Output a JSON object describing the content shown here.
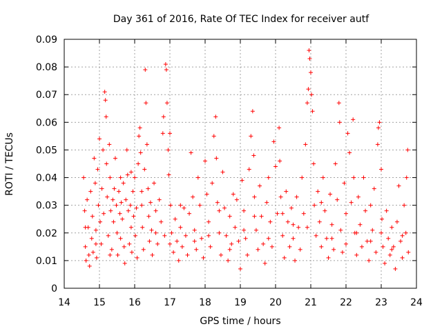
{
  "chart_data": {
    "type": "scatter",
    "title": "Day 361 of 2016, Rate Of TEC Index for receiver autf",
    "xlabel": "GPS time / hours",
    "ylabel": "ROTI / TECUs",
    "xlim": [
      14,
      24
    ],
    "ylim": [
      0,
      0.09
    ],
    "xticks": [
      "14",
      "15",
      "16",
      "17",
      "18",
      "19",
      "20",
      "21",
      "22",
      "23",
      "24"
    ],
    "yticks": [
      "0",
      "0.01",
      "0.02",
      "0.03",
      "0.04",
      "0.05",
      "0.06",
      "0.07",
      "0.08",
      "0.09"
    ],
    "grid": true,
    "marker": "plus",
    "color": "#ff0000",
    "series": [
      {
        "points": [
          [
            14.55,
            0.04
          ],
          [
            14.58,
            0.028
          ],
          [
            14.6,
            0.015
          ],
          [
            14.62,
            0.01
          ],
          [
            14.65,
            0.032
          ],
          [
            14.68,
            0.022
          ],
          [
            14.7,
            0.012
          ],
          [
            14.72,
            0.008
          ],
          [
            14.75,
            0.035
          ],
          [
            14.78,
            0.018
          ],
          [
            14.8,
            0.026
          ],
          [
            14.82,
            0.013
          ],
          [
            14.85,
            0.047
          ],
          [
            14.88,
            0.038
          ],
          [
            14.9,
            0.021
          ],
          [
            14.92,
            0.011
          ],
          [
            14.95,
            0.043
          ],
          [
            14.97,
            0.03
          ],
          [
            15.0,
            0.054
          ],
          [
            15.02,
            0.024
          ],
          [
            15.05,
            0.016
          ],
          [
            15.07,
            0.036
          ],
          [
            15.1,
            0.05
          ],
          [
            15.12,
            0.027
          ],
          [
            15.15,
            0.071
          ],
          [
            15.17,
            0.068
          ],
          [
            15.19,
            0.062
          ],
          [
            15.2,
            0.045
          ],
          [
            15.22,
            0.033
          ],
          [
            15.25,
            0.019
          ],
          [
            15.28,
            0.052
          ],
          [
            15.3,
            0.04
          ],
          [
            15.32,
            0.028
          ],
          [
            15.35,
            0.014
          ],
          [
            15.38,
            0.032
          ],
          [
            15.4,
            0.024
          ],
          [
            15.42,
            0.036
          ],
          [
            15.45,
            0.047
          ],
          [
            15.48,
            0.03
          ],
          [
            15.5,
            0.02
          ],
          [
            15.52,
            0.012
          ],
          [
            15.55,
            0.035
          ],
          [
            15.58,
            0.027
          ],
          [
            15.6,
            0.018
          ],
          [
            15.62,
            0.031
          ],
          [
            15.65,
            0.025
          ],
          [
            15.68,
            0.038
          ],
          [
            15.7,
            0.015
          ],
          [
            15.72,
            0.009
          ],
          [
            15.75,
            0.032
          ],
          [
            15.78,
            0.05
          ],
          [
            15.8,
            0.041
          ],
          [
            15.82,
            0.028
          ],
          [
            15.85,
            0.016
          ],
          [
            15.88,
            0.03
          ],
          [
            15.9,
            0.022
          ],
          [
            15.92,
            0.013
          ],
          [
            15.95,
            0.035
          ],
          [
            15.97,
            0.026
          ],
          [
            16.0,
            0.04
          ],
          [
            16.02,
            0.019
          ],
          [
            16.05,
            0.029
          ],
          [
            16.07,
            0.011
          ],
          [
            16.1,
            0.045
          ],
          [
            16.12,
            0.055
          ],
          [
            16.15,
            0.058
          ],
          [
            16.17,
            0.049
          ],
          [
            16.2,
            0.035
          ],
          [
            16.22,
            0.022
          ],
          [
            16.25,
            0.014
          ],
          [
            16.28,
            0.043
          ],
          [
            16.3,
            0.079
          ],
          [
            16.32,
            0.067
          ],
          [
            16.35,
            0.052
          ],
          [
            16.38,
            0.036
          ],
          [
            16.4,
            0.026
          ],
          [
            16.42,
            0.017
          ],
          [
            16.45,
            0.031
          ],
          [
            16.48,
            0.021
          ],
          [
            16.5,
            0.012
          ],
          [
            16.55,
            0.038
          ],
          [
            16.6,
            0.028
          ],
          [
            16.65,
            0.016
          ],
          [
            16.7,
            0.032
          ],
          [
            16.75,
            0.024
          ],
          [
            16.8,
            0.056
          ],
          [
            16.82,
            0.062
          ],
          [
            16.85,
            0.019
          ],
          [
            16.88,
            0.081
          ],
          [
            16.9,
            0.079
          ],
          [
            16.92,
            0.067
          ],
          [
            16.95,
            0.05
          ],
          [
            16.97,
            0.041
          ],
          [
            17.0,
            0.056
          ],
          [
            17.02,
            0.03
          ],
          [
            17.05,
            0.02
          ],
          [
            17.1,
            0.013
          ],
          [
            17.15,
            0.025
          ],
          [
            17.2,
            0.017
          ],
          [
            17.25,
            0.01
          ],
          [
            17.3,
            0.022
          ],
          [
            17.35,
            0.015
          ],
          [
            17.4,
            0.029
          ],
          [
            17.45,
            0.019
          ],
          [
            17.5,
            0.012
          ],
          [
            17.55,
            0.027
          ],
          [
            17.6,
            0.049
          ],
          [
            17.65,
            0.033
          ],
          [
            17.7,
            0.021
          ],
          [
            17.75,
            0.014
          ],
          [
            17.8,
            0.04
          ],
          [
            17.85,
            0.03
          ],
          [
            17.9,
            0.018
          ],
          [
            17.95,
            0.011
          ],
          [
            18.0,
            0.046
          ],
          [
            18.05,
            0.034
          ],
          [
            18.1,
            0.024
          ],
          [
            18.15,
            0.015
          ],
          [
            18.2,
            0.038
          ],
          [
            18.25,
            0.055
          ],
          [
            18.3,
            0.062
          ],
          [
            18.32,
            0.047
          ],
          [
            18.35,
            0.031
          ],
          [
            18.4,
            0.02
          ],
          [
            18.45,
            0.012
          ],
          [
            18.5,
            0.042
          ],
          [
            18.55,
            0.029
          ],
          [
            18.6,
            0.019
          ],
          [
            18.65,
            0.01
          ],
          [
            18.7,
            0.026
          ],
          [
            18.75,
            0.016
          ],
          [
            18.8,
            0.034
          ],
          [
            18.85,
            0.022
          ],
          [
            18.9,
            0.032
          ],
          [
            18.95,
            0.017
          ],
          [
            19.0,
            0.007
          ],
          [
            19.05,
            0.039
          ],
          [
            19.1,
            0.028
          ],
          [
            19.15,
            0.018
          ],
          [
            19.2,
            0.012
          ],
          [
            19.25,
            0.043
          ],
          [
            19.3,
            0.055
          ],
          [
            19.35,
            0.064
          ],
          [
            19.38,
            0.048
          ],
          [
            19.4,
            0.033
          ],
          [
            19.45,
            0.021
          ],
          [
            19.5,
            0.014
          ],
          [
            19.55,
            0.037
          ],
          [
            19.6,
            0.026
          ],
          [
            19.65,
            0.016
          ],
          [
            19.7,
            0.009
          ],
          [
            19.75,
            0.031
          ],
          [
            19.8,
            0.04
          ],
          [
            19.85,
            0.024
          ],
          [
            19.9,
            0.015
          ],
          [
            19.95,
            0.053
          ],
          [
            20.0,
            0.044
          ],
          [
            20.05,
            0.027
          ],
          [
            20.1,
            0.058
          ],
          [
            20.12,
            0.046
          ],
          [
            20.15,
            0.033
          ],
          [
            20.2,
            0.019
          ],
          [
            20.25,
            0.011
          ],
          [
            20.3,
            0.035
          ],
          [
            20.35,
            0.024
          ],
          [
            20.4,
            0.015
          ],
          [
            20.45,
            0.029
          ],
          [
            20.5,
            0.018
          ],
          [
            20.55,
            0.01
          ],
          [
            20.6,
            0.033
          ],
          [
            20.65,
            0.022
          ],
          [
            20.7,
            0.014
          ],
          [
            20.75,
            0.04
          ],
          [
            20.8,
            0.027
          ],
          [
            20.85,
            0.052
          ],
          [
            20.9,
            0.067
          ],
          [
            20.93,
            0.072
          ],
          [
            20.95,
            0.086
          ],
          [
            20.97,
            0.083
          ],
          [
            21.0,
            0.078
          ],
          [
            21.02,
            0.07
          ],
          [
            21.05,
            0.064
          ],
          [
            21.08,
            0.045
          ],
          [
            21.1,
            0.03
          ],
          [
            21.15,
            0.019
          ],
          [
            21.2,
            0.035
          ],
          [
            21.25,
            0.024
          ],
          [
            21.3,
            0.015
          ],
          [
            21.35,
            0.04
          ],
          [
            21.4,
            0.028
          ],
          [
            21.45,
            0.018
          ],
          [
            21.5,
            0.011
          ],
          [
            21.55,
            0.034
          ],
          [
            21.6,
            0.023
          ],
          [
            21.65,
            0.014
          ],
          [
            21.7,
            0.045
          ],
          [
            21.75,
            0.032
          ],
          [
            21.8,
            0.067
          ],
          [
            21.82,
            0.06
          ],
          [
            21.85,
            0.021
          ],
          [
            21.9,
            0.013
          ],
          [
            21.95,
            0.038
          ],
          [
            22.0,
            0.027
          ],
          [
            22.05,
            0.056
          ],
          [
            22.1,
            0.049
          ],
          [
            22.15,
            0.031
          ],
          [
            22.2,
            0.061
          ],
          [
            22.22,
            0.04
          ],
          [
            22.25,
            0.02
          ],
          [
            22.3,
            0.012
          ],
          [
            22.35,
            0.033
          ],
          [
            22.4,
            0.023
          ],
          [
            22.45,
            0.015
          ],
          [
            22.5,
            0.04
          ],
          [
            22.55,
            0.028
          ],
          [
            22.6,
            0.017
          ],
          [
            22.65,
            0.01
          ],
          [
            22.7,
            0.03
          ],
          [
            22.75,
            0.021
          ],
          [
            22.8,
            0.036
          ],
          [
            22.85,
            0.013
          ],
          [
            22.9,
            0.052
          ],
          [
            22.92,
            0.058
          ],
          [
            22.95,
            0.06
          ],
          [
            23.0,
            0.043
          ],
          [
            23.02,
            0.025
          ],
          [
            23.05,
            0.015
          ],
          [
            23.1,
            0.009
          ],
          [
            23.15,
            0.028
          ],
          [
            23.2,
            0.018
          ],
          [
            23.25,
            0.012
          ],
          [
            23.3,
            0.022
          ],
          [
            23.35,
            0.015
          ],
          [
            23.4,
            0.007
          ],
          [
            23.45,
            0.024
          ],
          [
            23.5,
            0.037
          ],
          [
            23.55,
            0.017
          ],
          [
            23.6,
            0.011
          ],
          [
            23.65,
            0.03
          ],
          [
            23.7,
            0.02
          ],
          [
            23.72,
            0.04
          ],
          [
            23.75,
            0.05
          ],
          [
            23.77,
            0.013
          ],
          [
            14.6,
            0.022
          ],
          [
            14.9,
            0.016
          ],
          [
            15.3,
            0.012
          ],
          [
            15.6,
            0.04
          ],
          [
            15.9,
            0.042
          ],
          [
            16.2,
            0.03
          ],
          [
            16.6,
            0.02
          ],
          [
            17.0,
            0.016
          ],
          [
            17.3,
            0.03
          ],
          [
            17.7,
            0.017
          ],
          [
            18.1,
            0.019
          ],
          [
            18.4,
            0.028
          ],
          [
            18.7,
            0.014
          ],
          [
            19.1,
            0.021
          ],
          [
            19.4,
            0.026
          ],
          [
            19.8,
            0.018
          ],
          [
            20.2,
            0.027
          ],
          [
            20.5,
            0.023
          ],
          [
            20.9,
            0.022
          ],
          [
            21.3,
            0.031
          ],
          [
            21.6,
            0.018
          ],
          [
            22.0,
            0.016
          ],
          [
            22.3,
            0.02
          ],
          [
            22.7,
            0.017
          ],
          [
            23.0,
            0.02
          ],
          [
            23.3,
            0.014
          ],
          [
            23.6,
            0.019
          ]
        ]
      }
    ]
  }
}
